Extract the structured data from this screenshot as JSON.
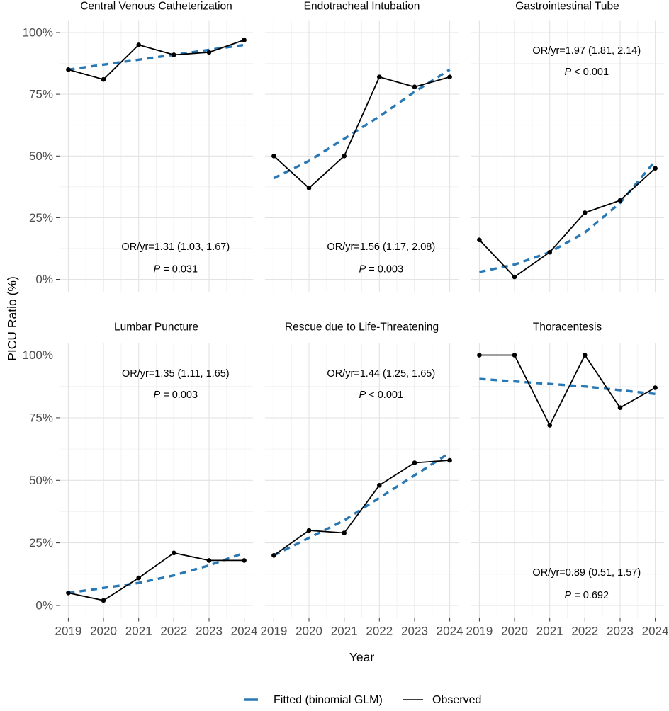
{
  "figure": {
    "x_axis_label": "Year",
    "y_axis_label": "PICU Ratio (%)",
    "y_tick_labels": [
      "0%",
      "25%",
      "50%",
      "75%",
      "100%"
    ],
    "x_tick_labels": [
      "2019",
      "2020",
      "2021",
      "2022",
      "2023",
      "2024"
    ],
    "legend": {
      "fitted_label": "Fitted (binomial GLM)",
      "observed_label": "Observed"
    },
    "colors": {
      "fitted": "#2878b5",
      "observed": "#000000",
      "grid_major": "#e3e3e3",
      "grid_minor": "#f0f0f0",
      "tick_text": "#4d4d4d",
      "axis_tick": "#333333",
      "text": "#000000",
      "background": "#ffffff"
    }
  },
  "chart_data": {
    "type": "line",
    "x": [
      2019,
      2020,
      2021,
      2022,
      2023,
      2024
    ],
    "xlabel": "Year",
    "ylabel": "PICU Ratio (%)",
    "ylim": [
      0,
      100
    ],
    "y_ticks_percent": [
      0,
      25,
      50,
      75,
      100
    ],
    "legend_position": "bottom",
    "grid": true,
    "facets": [
      {
        "title": "Central Venous Catheterization",
        "row": 0,
        "col": 0,
        "series": [
          {
            "name": "Observed",
            "style": "solid-points",
            "values": [
              85,
              81,
              95,
              91,
              92,
              97
            ]
          },
          {
            "name": "Fitted (binomial GLM)",
            "style": "dashed",
            "values": [
              85,
              87,
              89,
              91,
              93,
              95
            ]
          }
        ],
        "annotation": {
          "or_text": "OR/yr=1.31 (1.03, 1.67)",
          "p_text": "P = 0.031",
          "x_frac": 0.6,
          "or_y": 13,
          "p_y": 4
        }
      },
      {
        "title": "Endotracheal Intubation",
        "row": 0,
        "col": 1,
        "series": [
          {
            "name": "Observed",
            "style": "solid-points",
            "values": [
              50,
              37,
              50,
              82,
              78,
              82
            ]
          },
          {
            "name": "Fitted (binomial GLM)",
            "style": "dashed",
            "values": [
              41,
              48,
              57,
              66,
              76,
              85
            ]
          }
        ],
        "annotation": {
          "or_text": "OR/yr=1.56 (1.17, 2.08)",
          "p_text": "P = 0.003",
          "x_frac": 0.6,
          "or_y": 13,
          "p_y": 4
        }
      },
      {
        "title": "Gastrointestinal Tube",
        "row": 0,
        "col": 2,
        "series": [
          {
            "name": "Observed",
            "style": "solid-points",
            "values": [
              16,
              1,
              11,
              27,
              32,
              45
            ]
          },
          {
            "name": "Fitted (binomial GLM)",
            "style": "dashed",
            "values": [
              3,
              6,
              11,
              19,
              31,
              48
            ]
          }
        ],
        "annotation": {
          "or_text": "OR/yr=1.97 (1.81, 2.14)",
          "p_text": "P < 0.001",
          "x_frac": 0.6,
          "or_y": 92.5,
          "p_y": 84
        }
      },
      {
        "title": "Lumbar Puncture",
        "row": 1,
        "col": 0,
        "series": [
          {
            "name": "Observed",
            "style": "solid-points",
            "values": [
              5,
              2,
              11,
              21,
              18,
              18
            ]
          },
          {
            "name": "Fitted (binomial GLM)",
            "style": "dashed",
            "values": [
              5,
              7,
              9,
              12,
              16,
              21
            ]
          }
        ],
        "annotation": {
          "or_text": "OR/yr=1.35 (1.11, 1.65)",
          "p_text": "P = 0.003",
          "x_frac": 0.6,
          "or_y": 92.5,
          "p_y": 84
        }
      },
      {
        "title": "Rescue due to Life-Threatening",
        "row": 1,
        "col": 1,
        "series": [
          {
            "name": "Observed",
            "style": "solid-points",
            "values": [
              20,
              30,
              29,
              48,
              57,
              58
            ]
          },
          {
            "name": "Fitted (binomial GLM)",
            "style": "dashed",
            "values": [
              20,
              27,
              34,
              43,
              52,
              61
            ]
          }
        ],
        "annotation": {
          "or_text": "OR/yr=1.44 (1.25, 1.65)",
          "p_text": "P < 0.001",
          "x_frac": 0.6,
          "or_y": 92.5,
          "p_y": 84
        }
      },
      {
        "title": "Thoracentesis",
        "row": 1,
        "col": 2,
        "series": [
          {
            "name": "Observed",
            "style": "solid-points",
            "values": [
              100,
              100,
              72,
              100,
              79,
              87
            ]
          },
          {
            "name": "Fitted (binomial GLM)",
            "style": "dashed",
            "values": [
              90.5,
              89.5,
              88.5,
              87.5,
              86,
              84.5
            ]
          }
        ],
        "annotation": {
          "or_text": "OR/yr=0.89 (0.51, 1.57)",
          "p_text": "P = 0.692",
          "x_frac": 0.6,
          "or_y": 13,
          "p_y": 4
        }
      }
    ]
  }
}
